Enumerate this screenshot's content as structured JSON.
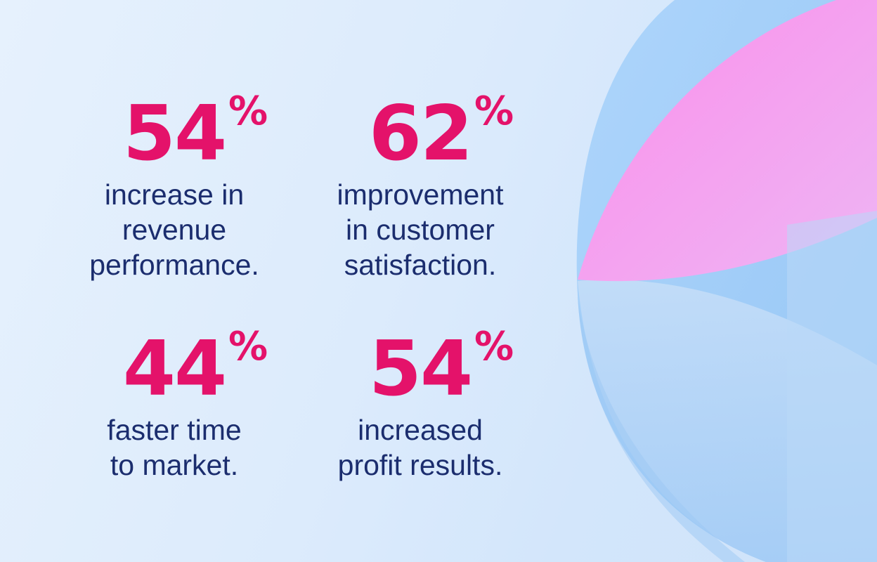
{
  "colors": {
    "accent": "#e4126a",
    "text": "#1b2d6e",
    "background": "#dcebfc",
    "shape_blue": "#9fcbf6",
    "shape_pink": "#f69be9"
  },
  "stats": [
    {
      "value": "54",
      "unit": "%",
      "caption_lines": [
        "increase in",
        "revenue",
        "performance."
      ]
    },
    {
      "value": "62",
      "unit": "%",
      "caption_lines": [
        "improvement",
        "in customer",
        "satisfaction."
      ]
    },
    {
      "value": "44",
      "unit": "%",
      "caption_lines": [
        "faster time",
        "to market."
      ]
    },
    {
      "value": "54",
      "unit": "%",
      "caption_lines": [
        "increased",
        "profit results."
      ]
    }
  ]
}
